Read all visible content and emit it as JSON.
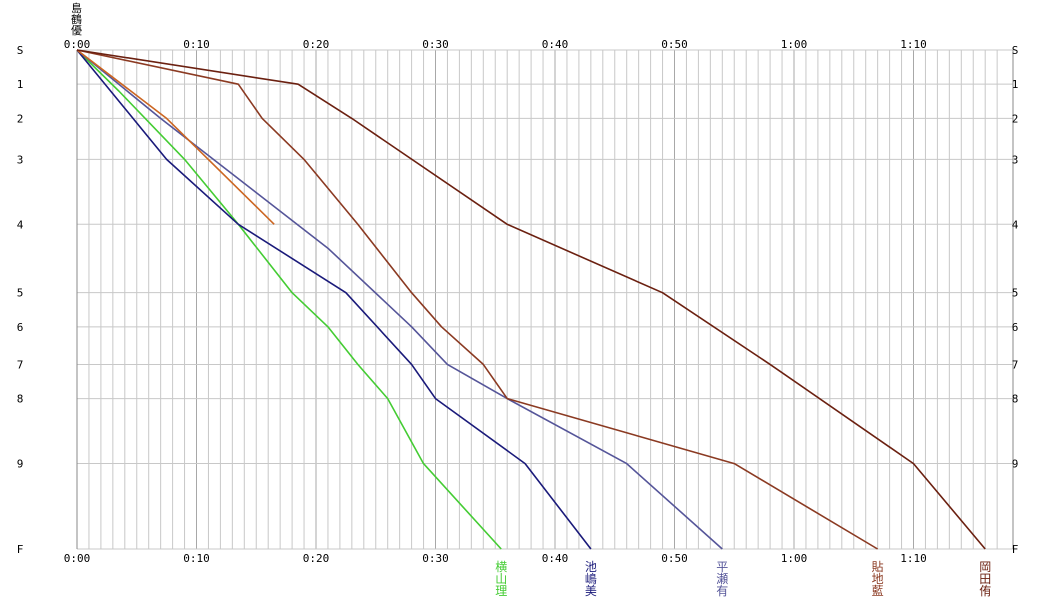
{
  "chart_data": {
    "type": "line",
    "title": "",
    "x_tick_labels": [
      "0:00",
      "0:10",
      "0:20",
      "0:30",
      "0:40",
      "0:50",
      "1:00",
      "1:10"
    ],
    "x_ticks_minutes": [
      0,
      10,
      20,
      30,
      40,
      50,
      60,
      70
    ],
    "xlim_minutes": [
      0,
      77
    ],
    "x_minor_step_minutes": 1,
    "stations": [
      {
        "label": "S",
        "km": 0
      },
      {
        "label": "1",
        "km": 1.0
      },
      {
        "label": "2",
        "km": 2.0
      },
      {
        "label": "3",
        "km": 3.2
      },
      {
        "label": "4",
        "km": 5.1
      },
      {
        "label": "5",
        "km": 7.1
      },
      {
        "label": "6",
        "km": 8.1
      },
      {
        "label": "7",
        "km": 9.2
      },
      {
        "label": "8",
        "km": 10.2
      },
      {
        "label": "9",
        "km": 12.1
      },
      {
        "label": "F",
        "km": 14.6
      }
    ],
    "grid": true,
    "top_left_names": [
      "島",
      "鶴",
      "優"
    ],
    "series": [
      {
        "name": "横山理",
        "color": "#44cc33",
        "finish_time": "0:35",
        "points": [
          [
            0,
            0
          ],
          [
            3.5,
            1.2
          ],
          [
            9,
            3.2
          ],
          [
            13.5,
            5.1
          ],
          [
            18,
            7.1
          ],
          [
            21,
            8.1
          ],
          [
            23.5,
            9.2
          ],
          [
            26,
            10.2
          ],
          [
            29,
            12.1
          ],
          [
            35.5,
            14.6
          ]
        ]
      },
      {
        "name": "池嶋美",
        "color": "#1a1a7a",
        "finish_time": "0:43",
        "points": [
          [
            0,
            0
          ],
          [
            7.5,
            3.2
          ],
          [
            13.5,
            5.1
          ],
          [
            22.5,
            7.1
          ],
          [
            28,
            9.2
          ],
          [
            30,
            10.2
          ],
          [
            37.5,
            12.1
          ],
          [
            43,
            14.6
          ]
        ]
      },
      {
        "name": "平瀬有",
        "color": "#555599",
        "finish_time": "0:54",
        "points": [
          [
            0,
            0
          ],
          [
            7,
            2.0
          ],
          [
            21,
            5.8
          ],
          [
            28,
            8.1
          ],
          [
            31,
            9.2
          ],
          [
            36,
            10.2
          ],
          [
            46,
            12.1
          ],
          [
            54,
            14.6
          ]
        ]
      },
      {
        "name": "",
        "color": "#cc6622",
        "finish_time": "",
        "points": [
          [
            0,
            0
          ],
          [
            7.5,
            2.0
          ],
          [
            16.5,
            5.1
          ]
        ]
      },
      {
        "name": "貼地藍",
        "color": "#8b3a22",
        "finish_time": "1:07",
        "points": [
          [
            0,
            0
          ],
          [
            13.5,
            1.0
          ],
          [
            15.5,
            2.0
          ],
          [
            19,
            3.2
          ],
          [
            23.5,
            5.1
          ],
          [
            28,
            7.1
          ],
          [
            30.5,
            8.1
          ],
          [
            34,
            9.2
          ],
          [
            36,
            10.2
          ],
          [
            55,
            12.1
          ],
          [
            67,
            14.6
          ]
        ]
      },
      {
        "name": "岡田侑",
        "color": "#6b2010",
        "finish_time": "1:16",
        "points": [
          [
            0,
            0
          ],
          [
            18.5,
            1.0
          ],
          [
            23,
            2.0
          ],
          [
            36,
            5.1
          ],
          [
            49,
            7.1
          ],
          [
            58,
            9.2
          ],
          [
            70,
            12.1
          ],
          [
            76,
            14.6
          ]
        ]
      }
    ]
  }
}
